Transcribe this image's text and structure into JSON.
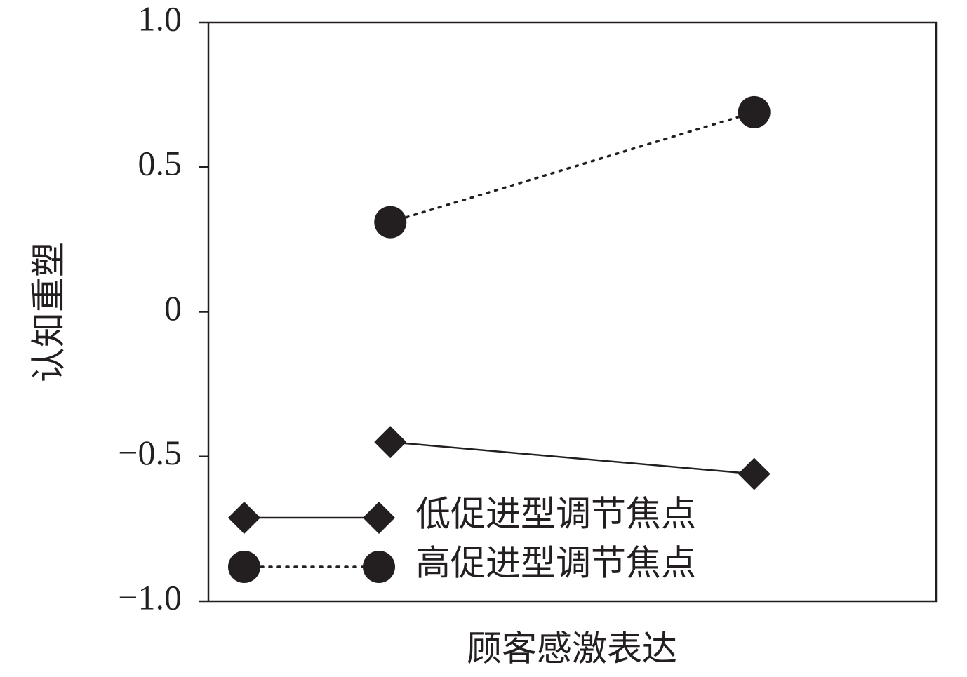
{
  "chart_data": {
    "type": "line",
    "x_label": "顾客感激表达",
    "y_label": "认知重塑",
    "categories": [
      null,
      null
    ],
    "series": [
      {
        "name": "低促进型调节焦点",
        "color": "#231f20",
        "marker": "diamond",
        "line_style": "solid",
        "values": [
          -0.45,
          -0.56
        ]
      },
      {
        "name": "高促进型调节焦点",
        "color": "#231f20",
        "marker": "circle",
        "line_style": "dotted",
        "values": [
          0.31,
          0.69
        ]
      }
    ],
    "ylim": [
      -1,
      1
    ],
    "yticks": [
      {
        "value": -1,
        "label": "−1.0"
      },
      {
        "value": -0.5,
        "label": "−0.5"
      },
      0,
      0.5,
      {
        "value": 1,
        "label": "1.0"
      }
    ],
    "grid": false,
    "legend": "lower left"
  }
}
